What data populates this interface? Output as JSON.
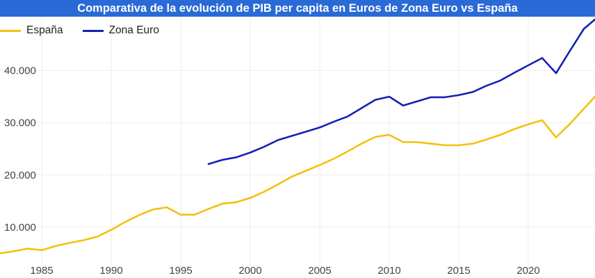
{
  "chart_data": {
    "type": "line",
    "title": "Comparativa de la evolución de PIB per capita en Euros de Zona Euro vs España",
    "xlabel": "",
    "ylabel": "",
    "xlim": [
      1982,
      2024.8
    ],
    "ylim": [
      4000,
      45000
    ],
    "x_ticks": [
      1985,
      1990,
      1995,
      2000,
      2005,
      2010,
      2015,
      2020
    ],
    "x_tick_labels": [
      "1985",
      "1990",
      "1995",
      "2000",
      "2005",
      "2010",
      "2015",
      "2020"
    ],
    "y_ticks": [
      10000,
      20000,
      30000,
      40000
    ],
    "y_tick_labels": [
      "10.000",
      "20.000",
      "30.000",
      "40.000"
    ],
    "grid": true,
    "legend_position": "top-left",
    "colors": {
      "title_background": "#2a6ad6",
      "title_text": "#ffffff",
      "grid": "#eeeeee"
    },
    "series": [
      {
        "name": "España",
        "color": "#f2c10f",
        "x": [
          1982,
          1983,
          1984,
          1985,
          1986,
          1987,
          1988,
          1989,
          1990,
          1991,
          1992,
          1993,
          1994,
          1995,
          1996,
          1997,
          1998,
          1999,
          2000,
          2001,
          2002,
          2003,
          2004,
          2005,
          2006,
          2007,
          2008,
          2009,
          2010,
          2011,
          2012,
          2013,
          2014,
          2015,
          2016,
          2017,
          2018,
          2019,
          2020,
          2021,
          2022,
          2023,
          2024,
          2024.8
        ],
        "y": [
          5000,
          5400,
          5900,
          5600,
          6400,
          7000,
          7500,
          8200,
          9500,
          11000,
          12300,
          13400,
          13800,
          12400,
          12400,
          13500,
          14500,
          14800,
          15600,
          16800,
          18200,
          19700,
          20800,
          21900,
          23100,
          24500,
          26000,
          27300,
          27700,
          26300,
          26300,
          26000,
          25700,
          25700,
          26000,
          26800,
          27700,
          28800,
          29700,
          30500,
          27200,
          29800,
          32700,
          35000
        ]
      },
      {
        "name": "Zona Euro",
        "color": "#1320b4",
        "x": [
          1997,
          1998,
          1999,
          2000,
          2001,
          2002,
          2003,
          2004,
          2005,
          2006,
          2007,
          2008,
          2009,
          2010,
          2011,
          2012,
          2013,
          2014,
          2015,
          2016,
          2017,
          2018,
          2019,
          2020,
          2021,
          2022,
          2023,
          2024,
          2024.8
        ],
        "y": [
          22100,
          22900,
          23400,
          24300,
          25400,
          26700,
          27500,
          28300,
          29100,
          30200,
          31200,
          32800,
          34400,
          35000,
          33300,
          34100,
          34900,
          34900,
          35300,
          35900,
          37100,
          38100,
          39600,
          41000,
          42400,
          39500,
          43800,
          48000,
          49800
        ]
      }
    ]
  }
}
